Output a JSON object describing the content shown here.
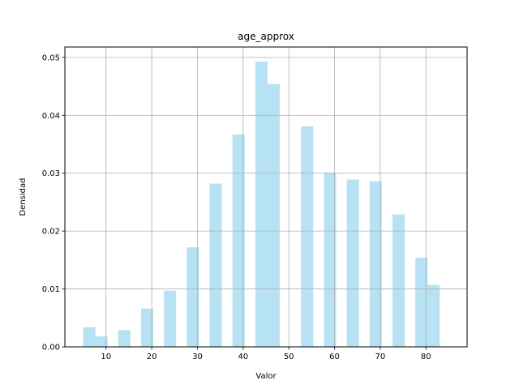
{
  "chart_data": {
    "type": "bar",
    "title": "age_approx",
    "xlabel": "Valor",
    "ylabel": "Densidad",
    "xlim": [
      1,
      89
    ],
    "ylim": [
      0,
      0.0518
    ],
    "xticks": [
      10,
      20,
      30,
      40,
      50,
      60,
      70,
      80
    ],
    "yticks": [
      0.0,
      0.01,
      0.02,
      0.03,
      0.04,
      0.05
    ],
    "ytick_labels": [
      "0.00",
      "0.01",
      "0.02",
      "0.03",
      "0.04",
      "0.05"
    ],
    "grid": true,
    "bar_color": "#87CEEB",
    "bar_opacity": 0.6,
    "bin_width": 2.67,
    "bins": [
      {
        "start": 5.0,
        "value": 0.0034
      },
      {
        "start": 7.67,
        "value": 0.0018
      },
      {
        "start": 12.67,
        "value": 0.0029
      },
      {
        "start": 17.67,
        "value": 0.0066
      },
      {
        "start": 22.67,
        "value": 0.0097
      },
      {
        "start": 27.67,
        "value": 0.0172
      },
      {
        "start": 32.67,
        "value": 0.0282
      },
      {
        "start": 37.67,
        "value": 0.0367
      },
      {
        "start": 42.67,
        "value": 0.0493
      },
      {
        "start": 45.33,
        "value": 0.0454
      },
      {
        "start": 52.67,
        "value": 0.0381
      },
      {
        "start": 57.67,
        "value": 0.0301
      },
      {
        "start": 62.67,
        "value": 0.0289
      },
      {
        "start": 67.67,
        "value": 0.0286
      },
      {
        "start": 72.67,
        "value": 0.0229
      },
      {
        "start": 77.67,
        "value": 0.0154
      },
      {
        "start": 80.33,
        "value": 0.0107
      }
    ]
  }
}
